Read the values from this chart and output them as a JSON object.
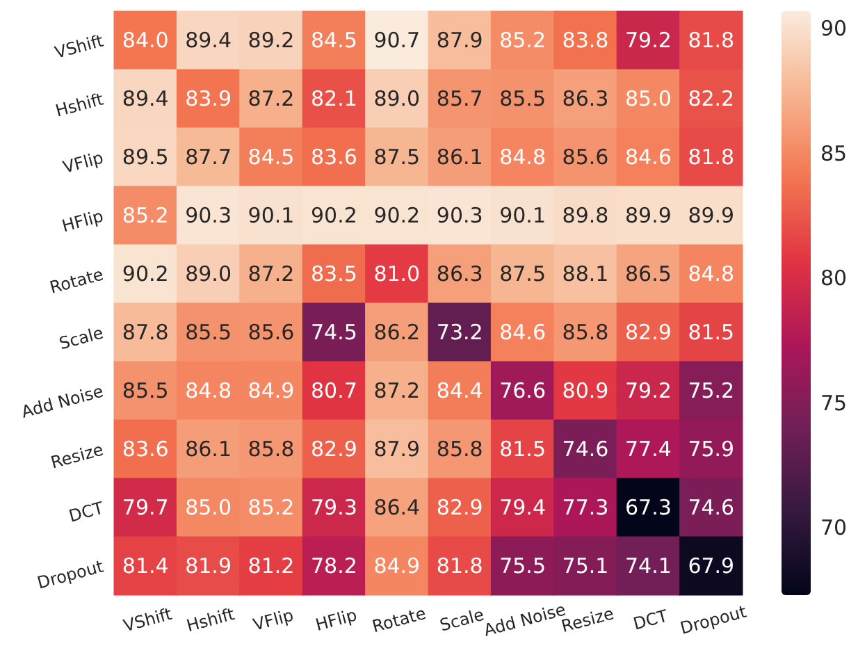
{
  "chart_data": {
    "type": "heatmap",
    "categories": [
      "VShift",
      "Hshift",
      "VFlip",
      "HFlip",
      "Rotate",
      "Scale",
      "Add Noise",
      "Resize",
      "DCT",
      "Dropout"
    ],
    "y_categories": [
      "VShift",
      "Hshift",
      "VFlip",
      "HFlip",
      "Rotate",
      "Scale",
      "Add Noise",
      "Resize",
      "DCT",
      "Dropout"
    ],
    "cells": [
      [
        84.0,
        89.4,
        89.2,
        84.5,
        90.7,
        87.9,
        85.2,
        83.8,
        79.2,
        81.8
      ],
      [
        89.4,
        83.9,
        87.2,
        82.1,
        89.0,
        85.7,
        85.5,
        86.3,
        85.0,
        82.2
      ],
      [
        89.5,
        87.7,
        84.5,
        83.6,
        87.5,
        86.1,
        84.8,
        85.6,
        84.6,
        81.8
      ],
      [
        85.2,
        90.3,
        90.1,
        90.2,
        90.2,
        90.3,
        90.1,
        89.8,
        89.9,
        89.9
      ],
      [
        90.2,
        89.0,
        87.2,
        83.5,
        81.0,
        86.3,
        87.5,
        88.1,
        86.5,
        84.8
      ],
      [
        87.8,
        85.5,
        85.6,
        74.5,
        86.2,
        73.2,
        84.6,
        85.8,
        82.9,
        81.5
      ],
      [
        85.5,
        84.8,
        84.9,
        80.7,
        87.2,
        84.4,
        76.6,
        80.9,
        79.2,
        75.2
      ],
      [
        83.6,
        86.1,
        85.8,
        82.9,
        87.9,
        85.8,
        81.5,
        74.6,
        77.4,
        75.9
      ],
      [
        79.7,
        85.0,
        85.2,
        79.3,
        86.4,
        82.9,
        79.4,
        77.3,
        67.3,
        74.6
      ],
      [
        81.4,
        81.9,
        81.2,
        78.2,
        84.9,
        81.8,
        75.5,
        75.1,
        74.1,
        67.9
      ]
    ],
    "cell_labels": [
      [
        "84.0",
        "89.4",
        "89.2",
        "84.5",
        "90.7",
        "87.9",
        "85.2",
        "83.8",
        "79.2",
        "81.8"
      ],
      [
        "89.4",
        "83.9",
        "87.2",
        "82.1",
        "89.0",
        "85.7",
        "85.5",
        "86.3",
        "85.0",
        "82.2"
      ],
      [
        "89.5",
        "87.7",
        "84.5",
        "83.6",
        "87.5",
        "86.1",
        "84.8",
        "85.6",
        "84.6",
        "81.8"
      ],
      [
        "85.2",
        "90.3",
        "90.1",
        "90.2",
        "90.2",
        "90.3",
        "90.1",
        "89.8",
        "89.9",
        "89.9"
      ],
      [
        "90.2",
        "89.0",
        "87.2",
        "83.5",
        "81.0",
        "86.3",
        "87.5",
        "88.1",
        "86.5",
        "84.8"
      ],
      [
        "87.8",
        "85.5",
        "85.6",
        "74.5",
        "86.2",
        "73.2",
        "84.6",
        "85.8",
        "82.9",
        "81.5"
      ],
      [
        "85.5",
        "84.8",
        "84.9",
        "80.7",
        "87.2",
        "84.4",
        "76.6",
        "80.9",
        "79.2",
        "75.2"
      ],
      [
        "83.6",
        "86.1",
        "85.8",
        "82.9",
        "87.9",
        "85.8",
        "81.5",
        "74.6",
        "77.4",
        "75.9"
      ],
      [
        "79.7",
        "85.0",
        "85.2",
        "79.3",
        "86.4",
        "82.9",
        "79.4",
        "77.3",
        "67.3",
        "74.6"
      ],
      [
        "81.4",
        "81.9",
        "81.2",
        "78.2",
        "84.9",
        "81.8",
        "75.5",
        "75.1",
        "74.1",
        "67.9"
      ]
    ],
    "clim": [
      67.3,
      90.7
    ],
    "cticks": [
      70,
      75,
      80,
      85,
      90
    ]
  }
}
